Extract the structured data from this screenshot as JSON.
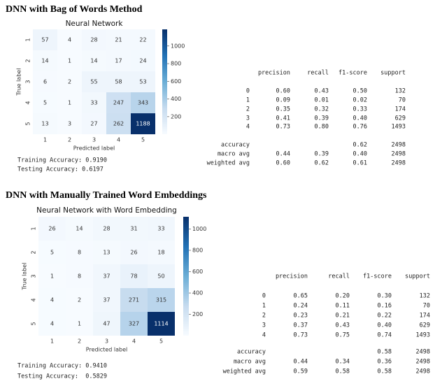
{
  "sections": [
    {
      "title": "DNN with Bag of Words Method",
      "heatmap": {
        "title": "Neural Network",
        "x_label": "Predicted label",
        "y_label": "True label",
        "categories": [
          "1",
          "2",
          "3",
          "4",
          "5"
        ],
        "matrix": [
          [
            57,
            4,
            28,
            21,
            22
          ],
          [
            14,
            1,
            14,
            17,
            24
          ],
          [
            6,
            2,
            55,
            58,
            53
          ],
          [
            5,
            1,
            33,
            247,
            343
          ],
          [
            13,
            3,
            27,
            262,
            1188
          ]
        ],
        "clim": [
          1,
          1188
        ],
        "colorbar_ticks": [
          200,
          400,
          600,
          800,
          1000
        ]
      },
      "accuracy_lines": [
        "Training Accuracy: 0.9190",
        "Testing Accuracy: 0.6197"
      ],
      "report": {
        "header": [
          "precision",
          "recall",
          "f1-score",
          "support"
        ],
        "rows": [
          [
            "0",
            "0.60",
            "0.43",
            "0.50",
            "132"
          ],
          [
            "1",
            "0.09",
            "0.01",
            "0.02",
            "70"
          ],
          [
            "2",
            "0.35",
            "0.32",
            "0.33",
            "174"
          ],
          [
            "3",
            "0.41",
            "0.39",
            "0.40",
            "629"
          ],
          [
            "4",
            "0.73",
            "0.80",
            "0.76",
            "1493"
          ],
          [
            "accuracy",
            null,
            null,
            "0.62",
            "2498"
          ],
          [
            "macro avg",
            "0.44",
            "0.39",
            "0.40",
            "2498"
          ],
          [
            "weighted avg",
            "0.60",
            "0.62",
            "0.61",
            "2498"
          ]
        ]
      }
    },
    {
      "title": "DNN with Manually Trained Word Embeddings",
      "heatmap": {
        "title": "Neural Network with Word Embedding",
        "x_label": "Predicted label",
        "y_label": "True label",
        "categories": [
          "1",
          "2",
          "3",
          "4",
          "5"
        ],
        "matrix": [
          [
            26,
            14,
            28,
            31,
            33
          ],
          [
            5,
            8,
            13,
            26,
            18
          ],
          [
            1,
            8,
            37,
            78,
            50
          ],
          [
            4,
            2,
            37,
            271,
            315
          ],
          [
            4,
            1,
            47,
            327,
            1114
          ]
        ],
        "clim": [
          1,
          1114
        ],
        "colorbar_ticks": [
          200,
          400,
          600,
          800,
          1000
        ]
      },
      "accuracy_lines": [
        "Training Accuracy: 0.9410",
        "Testing Accuracy:  0.5829"
      ],
      "report": {
        "header": [
          "precision",
          "recall",
          "f1-score",
          "support"
        ],
        "rows": [
          [
            "0",
            "0.65",
            "0.20",
            "0.30",
            "132"
          ],
          [
            "1",
            "0.24",
            "0.11",
            "0.16",
            "70"
          ],
          [
            "2",
            "0.23",
            "0.21",
            "0.22",
            "174"
          ],
          [
            "3",
            "0.37",
            "0.43",
            "0.40",
            "629"
          ],
          [
            "4",
            "0.73",
            "0.75",
            "0.74",
            "1493"
          ],
          [
            "accuracy",
            null,
            null,
            "0.58",
            "2498"
          ],
          [
            "macro avg",
            "0.44",
            "0.34",
            "0.36",
            "2498"
          ],
          [
            "weighted avg",
            "0.59",
            "0.58",
            "0.58",
            "2498"
          ]
        ]
      }
    }
  ]
}
